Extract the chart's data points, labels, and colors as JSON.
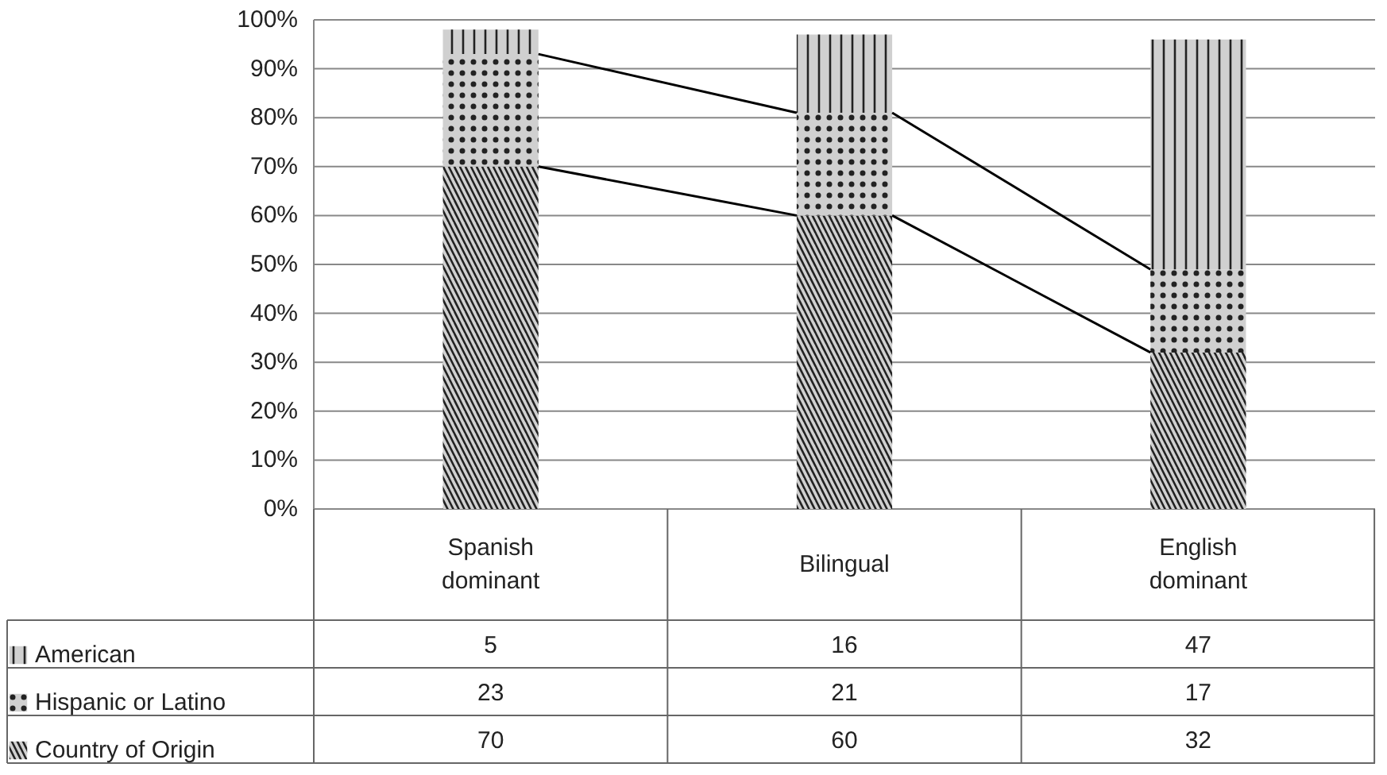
{
  "chart_data": {
    "type": "bar",
    "stacked": true,
    "categories": [
      "Spanish dominant",
      "Bilingual",
      "English dominant"
    ],
    "series": [
      {
        "name": "Country of Origin",
        "color": "#d0d0d0",
        "values": [
          70,
          60,
          32
        ]
      },
      {
        "name": "Hispanic or Latino",
        "color": "#d0d0d0",
        "values": [
          23,
          21,
          17
        ]
      },
      {
        "name": "American",
        "color": "#d0d0d0",
        "values": [
          5,
          16,
          47
        ]
      }
    ],
    "ylim": [
      0,
      100
    ],
    "yticks": [
      {
        "value": 0,
        "label": "0%"
      },
      {
        "value": 10,
        "label": "10%"
      },
      {
        "value": 20,
        "label": "20%"
      },
      {
        "value": 30,
        "label": "30%"
      },
      {
        "value": 40,
        "label": "40%"
      },
      {
        "value": 50,
        "label": "50%"
      },
      {
        "value": 60,
        "label": "60%"
      },
      {
        "value": 70,
        "label": "70%"
      },
      {
        "value": 80,
        "label": "80%"
      },
      {
        "value": 90,
        "label": "90%"
      },
      {
        "value": 100,
        "label": "100%"
      }
    ],
    "grid": "y",
    "legend": "bottom",
    "data_labels": true
  }
}
